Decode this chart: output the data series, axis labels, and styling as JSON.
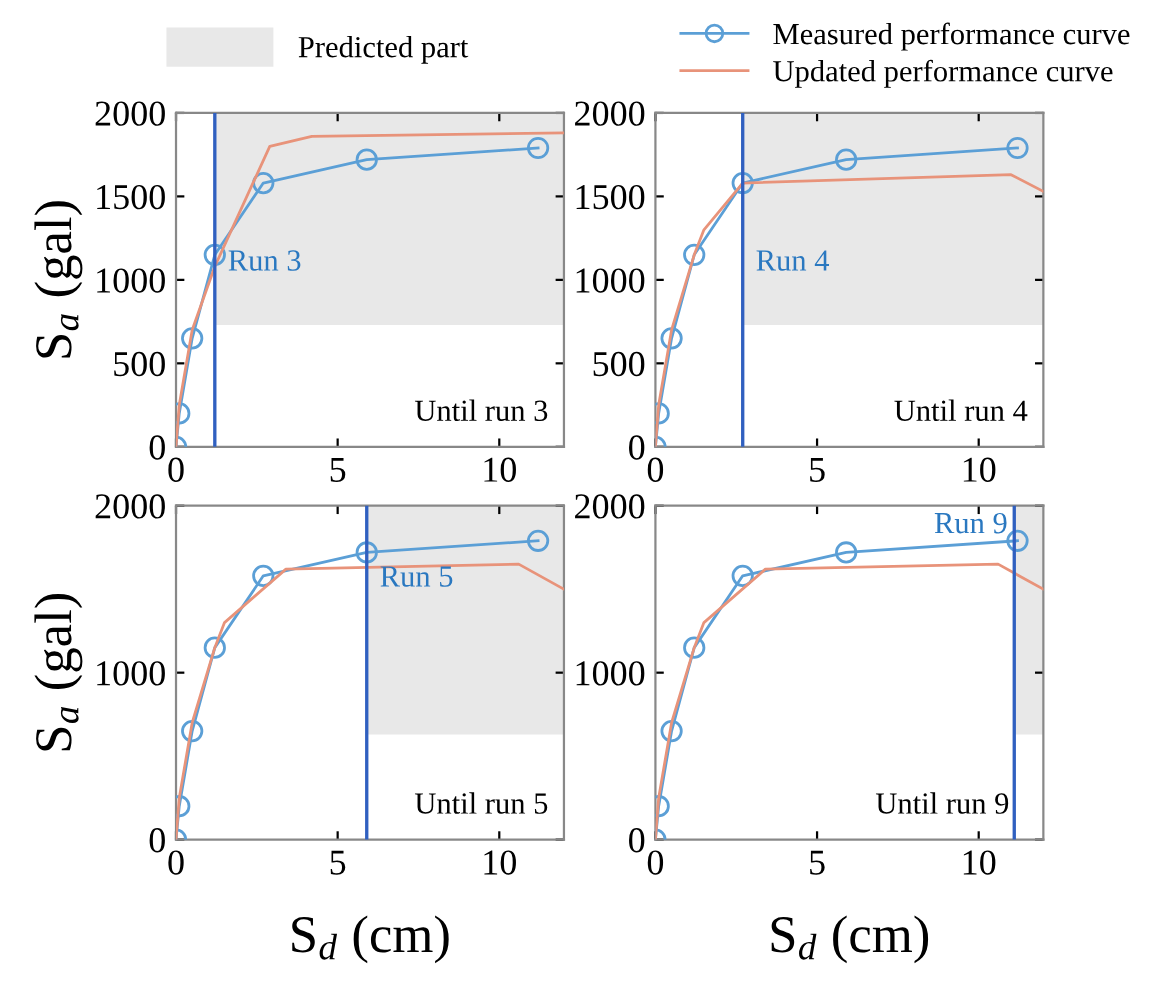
{
  "chart_data": [
    {
      "type": "line",
      "ylabel": "S$_{a}$ (gal)",
      "xlim": [
        0,
        12
      ],
      "xticks": [
        0,
        5,
        10
      ],
      "ylim": [
        0,
        2000
      ],
      "yticks": [
        0,
        500,
        1000,
        1500,
        2000
      ],
      "legend": "top",
      "grid": false,
      "series": [
        {
          "name": "Predicted part",
          "color": "#e8e8e8",
          "x": [
            1.2,
            12
          ],
          "values": [
            null,
            null
          ],
          "upper": [
            2000,
            2000
          ],
          "lower": [
            730,
            730
          ]
        },
        {
          "name": "Measured performance curve",
          "color": "#5b9fd6",
          "marker": "circle",
          "x": [
            0,
            0.1,
            0.5,
            1.2,
            2.7,
            5.9,
            11.2
          ],
          "values": [
            0,
            200,
            650,
            1150,
            1580,
            1720,
            1790
          ]
        },
        {
          "name": "Updated performance curve",
          "color": "#e8937a",
          "marker": "none",
          "x": [
            0,
            0.1,
            0.5,
            1.2,
            2.9,
            4.2,
            12
          ],
          "values": [
            0,
            250,
            700,
            1080,
            1800,
            1860,
            1880
          ]
        }
      ],
      "ref_lines": [
        {
          "axis": "x",
          "value": 1.2,
          "label": "Run 3",
          "color": "#3060c0"
        }
      ],
      "annotations": [
        "Until run 3"
      ]
    },
    {
      "type": "line",
      "xlim": [
        0,
        12
      ],
      "xticks": [
        0,
        5,
        10
      ],
      "ylim": [
        0,
        2000
      ],
      "yticks": [
        0,
        500,
        1000,
        1500,
        2000
      ],
      "grid": false,
      "series": [
        {
          "color": "#e8e8e8",
          "x": [
            2.7,
            12
          ],
          "values": [
            null,
            null
          ],
          "upper": [
            2000,
            2000
          ],
          "lower": [
            730,
            730
          ]
        },
        {
          "color": "#5b9fd6",
          "marker": "circle",
          "x": [
            0,
            0.1,
            0.5,
            1.2,
            2.7,
            5.9,
            11.2
          ],
          "values": [
            0,
            200,
            650,
            1150,
            1580,
            1720,
            1790
          ]
        },
        {
          "color": "#e8937a",
          "marker": "none",
          "x": [
            0,
            0.1,
            0.5,
            1.2,
            1.5,
            2.7,
            11,
            12
          ],
          "values": [
            0,
            250,
            700,
            1150,
            1300,
            1580,
            1630,
            1530
          ]
        }
      ],
      "ref_lines": [
        {
          "axis": "x",
          "value": 2.7,
          "label": "Run 4",
          "color": "#3060c0"
        }
      ],
      "annotations": [
        "Until run 4"
      ]
    },
    {
      "type": "line",
      "xlabel": "S$_{d}$ (cm)",
      "ylabel": "S$_{a}$ (gal)",
      "xlim": [
        0,
        12
      ],
      "xticks": [
        0,
        5,
        10
      ],
      "ylim": [
        0,
        2000
      ],
      "yticks": [
        0,
        1000,
        2000
      ],
      "grid": false,
      "series": [
        {
          "color": "#e8e8e8",
          "x": [
            5.9,
            12
          ],
          "values": [
            null,
            null
          ],
          "upper": [
            2000,
            2000
          ],
          "lower": [
            630,
            630
          ]
        },
        {
          "color": "#5b9fd6",
          "marker": "circle",
          "x": [
            0,
            0.1,
            0.5,
            1.2,
            2.7,
            5.9,
            11.2
          ],
          "values": [
            0,
            200,
            650,
            1150,
            1580,
            1720,
            1790
          ]
        },
        {
          "color": "#e8937a",
          "marker": "none",
          "x": [
            0,
            0.1,
            0.5,
            1.2,
            1.5,
            3.4,
            10.6,
            12
          ],
          "values": [
            0,
            250,
            700,
            1150,
            1300,
            1620,
            1650,
            1500
          ]
        }
      ],
      "ref_lines": [
        {
          "axis": "x",
          "value": 5.9,
          "label": "Run 5",
          "color": "#3060c0"
        }
      ],
      "annotations": [
        "Until run 5"
      ]
    },
    {
      "type": "line",
      "xlabel": "S$_{d}$ (cm)",
      "xlim": [
        0,
        12
      ],
      "xticks": [
        0,
        5,
        10
      ],
      "ylim": [
        0,
        2000
      ],
      "yticks": [
        0,
        1000,
        2000
      ],
      "grid": false,
      "series": [
        {
          "color": "#e8e8e8",
          "x": [
            11.1,
            12
          ],
          "values": [
            null,
            null
          ],
          "upper": [
            2000,
            2000
          ],
          "lower": [
            630,
            630
          ]
        },
        {
          "color": "#5b9fd6",
          "marker": "circle",
          "x": [
            0,
            0.1,
            0.5,
            1.2,
            2.7,
            5.9,
            11.2
          ],
          "values": [
            0,
            200,
            650,
            1150,
            1580,
            1720,
            1790
          ]
        },
        {
          "color": "#e8937a",
          "marker": "none",
          "x": [
            0,
            0.1,
            0.5,
            1.2,
            1.5,
            3.4,
            10.6,
            12
          ],
          "values": [
            0,
            250,
            700,
            1150,
            1300,
            1620,
            1650,
            1500
          ]
        }
      ],
      "ref_lines": [
        {
          "axis": "x",
          "value": 11.1,
          "label": "Run 9",
          "color": "#3060c0"
        }
      ],
      "annotations": [
        "Until run 9"
      ]
    }
  ]
}
